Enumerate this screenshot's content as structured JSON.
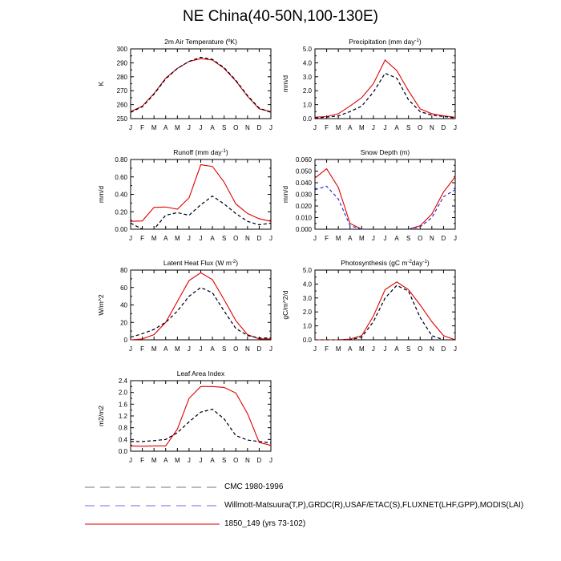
{
  "title": "NE China(40-50N,100-130E)",
  "colors": {
    "cmc": "#000000",
    "obs": "#2020cc",
    "model": "#e00000"
  },
  "legend": [
    {
      "label": "CMC 1980-1996",
      "color": "#909090",
      "dash": "dashed"
    },
    {
      "label": "Willmott-Matsuura(T,P),GRDC(R),USAF/ETAC(S),FLUXNET(LHF,GPP),MODIS(LAI)",
      "color": "#8a8ae0",
      "dash": "dashed"
    },
    {
      "label": "1850_149 (yrs 73-102)",
      "color": "#e03030",
      "dash": "solid"
    }
  ],
  "chart_data": [
    {
      "id": "temp",
      "type": "line",
      "title": "2m Air Temperature (ºK)",
      "ylabel": "K",
      "categories": [
        "J",
        "F",
        "M",
        "A",
        "M",
        "J",
        "J",
        "A",
        "S",
        "O",
        "N",
        "D",
        "J"
      ],
      "ylim": [
        250,
        300
      ],
      "yticks": [
        250,
        260,
        270,
        280,
        290,
        300
      ],
      "ytick_labels": [
        "250",
        "260",
        "270",
        "280",
        "290",
        "300"
      ],
      "series": [
        {
          "key": "model",
          "style": "solid",
          "values": [
            255,
            259,
            268,
            279,
            286,
            291,
            293,
            292,
            286,
            277,
            266,
            257,
            255
          ]
        },
        {
          "key": "obs",
          "style": "dashed",
          "values": [
            254.5,
            258.5,
            267.5,
            278.5,
            286,
            291,
            294,
            292.5,
            286.5,
            277.5,
            266.5,
            257.5,
            254.5
          ]
        },
        {
          "key": "cmc",
          "style": "dashed",
          "values": [
            254.5,
            258.5,
            267.5,
            278.5,
            286,
            291,
            294,
            292.5,
            286.5,
            277.5,
            266.5,
            257.5,
            254.5
          ]
        }
      ]
    },
    {
      "id": "precip",
      "type": "line",
      "title": "Precipitation (mm day",
      "title_sup": "-1",
      "title_end": ")",
      "ylabel": "mm/d",
      "categories": [
        "J",
        "F",
        "M",
        "A",
        "M",
        "J",
        "J",
        "A",
        "S",
        "O",
        "N",
        "D",
        "J"
      ],
      "ylim": [
        0,
        5
      ],
      "yticks": [
        0,
        1,
        2,
        3,
        4,
        5
      ],
      "ytick_labels": [
        "0.0",
        "1.0",
        "2.0",
        "3.0",
        "4.0",
        "5.0"
      ],
      "series": [
        {
          "key": "model",
          "style": "solid",
          "values": [
            0.1,
            0.15,
            0.35,
            0.9,
            1.5,
            2.5,
            4.2,
            3.45,
            2.0,
            0.7,
            0.35,
            0.2,
            0.1
          ]
        },
        {
          "key": "obs",
          "style": "dashed",
          "values": [
            0.05,
            0.1,
            0.2,
            0.5,
            0.9,
            1.9,
            3.25,
            2.9,
            1.35,
            0.5,
            0.25,
            0.15,
            0.05
          ]
        },
        {
          "key": "cmc",
          "style": "dashed",
          "values": [
            0.05,
            0.1,
            0.2,
            0.5,
            0.9,
            1.9,
            3.25,
            2.9,
            1.35,
            0.5,
            0.25,
            0.15,
            0.05
          ]
        }
      ]
    },
    {
      "id": "runoff",
      "type": "line",
      "title": "Runoff (mm day",
      "title_sup": "-1",
      "title_end": ")",
      "ylabel": "mm/d",
      "categories": [
        "J",
        "F",
        "M",
        "A",
        "M",
        "J",
        "J",
        "A",
        "S",
        "O",
        "N",
        "D",
        "J"
      ],
      "ylim": [
        0,
        0.8
      ],
      "yticks": [
        0,
        0.2,
        0.4,
        0.6,
        0.8
      ],
      "ytick_labels": [
        "0.00",
        "0.20",
        "0.40",
        "0.60",
        "0.80"
      ],
      "series": [
        {
          "key": "model",
          "style": "solid",
          "values": [
            0.09,
            0.095,
            0.25,
            0.255,
            0.23,
            0.36,
            0.74,
            0.72,
            0.54,
            0.29,
            0.18,
            0.12,
            0.09
          ]
        },
        {
          "key": "obs",
          "style": "dashed",
          "values": [
            0.07,
            0.0,
            0.0,
            0.16,
            0.19,
            0.16,
            0.28,
            0.38,
            0.29,
            0.18,
            0.09,
            0.05,
            0.07
          ]
        },
        {
          "key": "cmc",
          "style": "dashed",
          "values": [
            0.07,
            0.0,
            0.0,
            0.16,
            0.19,
            0.16,
            0.28,
            0.38,
            0.29,
            0.18,
            0.09,
            0.05,
            0.07
          ]
        }
      ]
    },
    {
      "id": "snow",
      "type": "line",
      "title": "Snow Depth (m)",
      "ylabel": "mm/d",
      "categories": [
        "J",
        "F",
        "M",
        "A",
        "M",
        "J",
        "J",
        "A",
        "S",
        "O",
        "N",
        "D",
        "J"
      ],
      "ylim": [
        0,
        0.06
      ],
      "yticks": [
        0,
        0.01,
        0.02,
        0.03,
        0.04,
        0.05,
        0.06
      ],
      "ytick_labels": [
        "0.000",
        "0.010",
        "0.020",
        "0.030",
        "0.040",
        "0.050",
        "0.060"
      ],
      "series": [
        {
          "key": "model",
          "style": "solid",
          "values": [
            0.044,
            0.052,
            0.036,
            0.005,
            0.0,
            null,
            null,
            null,
            0.0,
            0.003,
            0.013,
            0.032,
            0.045
          ]
        },
        {
          "key": "obs",
          "style": "dashed",
          "values": [
            0.034,
            0.037,
            0.026,
            0.003,
            0.0,
            null,
            null,
            null,
            0.0,
            0.002,
            0.01,
            0.028,
            0.034
          ]
        }
      ]
    },
    {
      "id": "lhf",
      "type": "line",
      "title": "Latent Heat Flux (W m",
      "title_sup": "-2",
      "title_end": ")",
      "ylabel": "W/m^2",
      "categories": [
        "J",
        "F",
        "M",
        "A",
        "M",
        "J",
        "J",
        "A",
        "S",
        "O",
        "N",
        "D",
        "J"
      ],
      "ylim": [
        0,
        80
      ],
      "yticks": [
        0,
        20,
        40,
        60,
        80
      ],
      "ytick_labels": [
        "0",
        "20",
        "40",
        "60",
        "80"
      ],
      "series": [
        {
          "key": "model",
          "style": "solid",
          "values": [
            0,
            1,
            6,
            20,
            44,
            68,
            77,
            69,
            46,
            22,
            6,
            1,
            1
          ]
        },
        {
          "key": "obs",
          "style": "dashed",
          "values": [
            3,
            7,
            12,
            20,
            33,
            50,
            60,
            54,
            33,
            13,
            5,
            2,
            2
          ]
        },
        {
          "key": "cmc",
          "style": "dashed",
          "values": [
            3,
            7,
            12,
            20,
            33,
            50,
            60,
            54,
            33,
            13,
            5,
            2,
            2
          ]
        }
      ]
    },
    {
      "id": "gpp",
      "type": "line",
      "title": "Photosynthesis (gC m",
      "title_sup": "-2",
      "title_mid": "day",
      "title_sup2": "-1",
      "title_end": ")",
      "ylabel": "gC/m^2/d",
      "categories": [
        "J",
        "F",
        "M",
        "A",
        "M",
        "J",
        "J",
        "A",
        "S",
        "O",
        "N",
        "D",
        "J"
      ],
      "ylim": [
        0,
        5
      ],
      "yticks": [
        0,
        1,
        2,
        3,
        4,
        5
      ],
      "ytick_labels": [
        "0.0",
        "1.0",
        "2.0",
        "3.0",
        "4.0",
        "5.0"
      ],
      "series": [
        {
          "key": "model",
          "style": "solid",
          "values": [
            0,
            0,
            0,
            0.05,
            0.3,
            1.7,
            3.6,
            4.15,
            3.6,
            2.5,
            1.3,
            0.3,
            0
          ]
        },
        {
          "key": "obs",
          "style": "dashed",
          "values": [
            0,
            0,
            0,
            0,
            0.2,
            1.3,
            3.0,
            3.9,
            3.5,
            1.6,
            0.3,
            0,
            0
          ]
        },
        {
          "key": "cmc",
          "style": "dashed",
          "values": [
            0,
            0,
            0,
            0,
            0.2,
            1.3,
            3.0,
            3.9,
            3.5,
            1.6,
            0.3,
            0,
            0
          ]
        }
      ]
    },
    {
      "id": "lai",
      "type": "line",
      "title": "Leaf Area Index",
      "ylabel": "m2/m2",
      "categories": [
        "J",
        "F",
        "M",
        "A",
        "M",
        "J",
        "J",
        "A",
        "S",
        "O",
        "N",
        "D",
        "J"
      ],
      "ylim": [
        0,
        2.4
      ],
      "yticks": [
        0,
        0.4,
        0.8,
        1.2,
        1.6,
        2.0,
        2.4
      ],
      "ytick_labels": [
        "0.0",
        "0.4",
        "0.8",
        "1.2",
        "1.6",
        "2.0",
        "2.4"
      ],
      "series": [
        {
          "key": "model",
          "style": "solid",
          "values": [
            0.18,
            0.17,
            0.18,
            0.18,
            0.75,
            1.8,
            2.2,
            2.2,
            2.17,
            1.98,
            1.28,
            0.3,
            0.2
          ]
        },
        {
          "key": "obs",
          "style": "dashed",
          "values": [
            0.33,
            0.33,
            0.36,
            0.4,
            0.63,
            1.0,
            1.33,
            1.43,
            1.1,
            0.53,
            0.38,
            0.33,
            0.28
          ]
        },
        {
          "key": "cmc",
          "style": "dashed",
          "values": [
            0.33,
            0.33,
            0.36,
            0.4,
            0.63,
            1.0,
            1.33,
            1.43,
            1.1,
            0.53,
            0.38,
            0.33,
            0.28
          ]
        }
      ]
    }
  ]
}
